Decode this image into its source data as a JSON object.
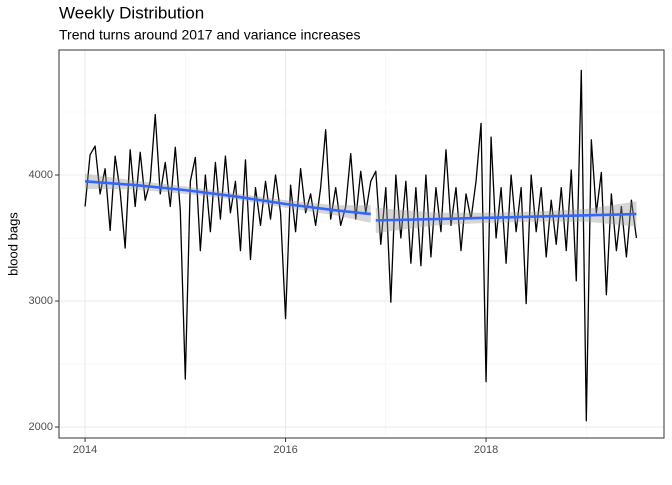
{
  "chart_data": {
    "type": "line",
    "title": "Weekly Distribution",
    "subtitle": "Trend turns around 2017 and variance increases",
    "y_label": "blood bags",
    "xlim": [
      2013.74,
      2019.775
    ],
    "ylim": [
      1913,
      4992
    ],
    "xticks": [
      2014,
      2016,
      2018
    ],
    "yticks": [
      2000,
      3000,
      4000
    ],
    "x_minor_grid": [
      2015,
      2017,
      2019
    ],
    "y_minor_grid": [
      2500,
      3500,
      4500
    ],
    "grid": true,
    "series": [
      {
        "color": "#000000",
        "x": [
          2014.0,
          2014.05,
          2014.1,
          2014.15,
          2014.2,
          2014.25,
          2014.3,
          2014.35,
          2014.4,
          2014.45,
          2014.5,
          2014.55,
          2014.6,
          2014.65,
          2014.7,
          2014.75,
          2014.8,
          2014.85,
          2014.9,
          2014.95,
          2015.0,
          2015.05,
          2015.1,
          2015.15,
          2015.2,
          2015.25,
          2015.3,
          2015.35,
          2015.4,
          2015.45,
          2015.5,
          2015.55,
          2015.6,
          2015.65,
          2015.7,
          2015.75,
          2015.8,
          2015.85,
          2015.9,
          2015.95,
          2016.0,
          2016.05,
          2016.1,
          2016.15,
          2016.2,
          2016.25,
          2016.3,
          2016.35,
          2016.4,
          2016.45,
          2016.5,
          2016.55,
          2016.6,
          2016.65,
          2016.7,
          2016.75,
          2016.8,
          2016.85,
          2016.9,
          2016.95,
          2017.0,
          2017.05,
          2017.1,
          2017.15,
          2017.2,
          2017.25,
          2017.3,
          2017.35,
          2017.4,
          2017.45,
          2017.5,
          2017.55,
          2017.6,
          2017.65,
          2017.7,
          2017.75,
          2017.8,
          2017.85,
          2017.9,
          2017.95,
          2018.0,
          2018.05,
          2018.1,
          2018.15,
          2018.2,
          2018.25,
          2018.3,
          2018.35,
          2018.4,
          2018.45,
          2018.5,
          2018.55,
          2018.6,
          2018.65,
          2018.7,
          2018.75,
          2018.8,
          2018.85,
          2018.9,
          2018.95,
          2019.0,
          2019.05,
          2019.1,
          2019.15,
          2019.2,
          2019.25,
          2019.3,
          2019.35,
          2019.4,
          2019.45,
          2019.5
        ],
        "values": [
          3750,
          4160,
          4230,
          3850,
          4050,
          3560,
          4150,
          3870,
          3420,
          4200,
          3750,
          4180,
          3800,
          3950,
          4480,
          3850,
          4100,
          3750,
          4220,
          3720,
          2380,
          3950,
          4140,
          3400,
          4000,
          3550,
          4100,
          3650,
          4150,
          3700,
          3950,
          3400,
          4120,
          3330,
          3900,
          3600,
          3950,
          3650,
          4000,
          3700,
          2860,
          3920,
          3550,
          4050,
          3700,
          3850,
          3600,
          3900,
          4360,
          3650,
          3900,
          3600,
          3750,
          4170,
          3650,
          4030,
          3700,
          3950,
          4030,
          3450,
          3900,
          2990,
          4000,
          3500,
          3950,
          3300,
          3900,
          3280,
          4000,
          3350,
          3900,
          3550,
          4200,
          3600,
          3900,
          3400,
          3850,
          3650,
          3950,
          4410,
          2360,
          4300,
          3500,
          3900,
          3300,
          4000,
          3550,
          3900,
          2980,
          4000,
          3550,
          3900,
          3350,
          3800,
          3450,
          3900,
          3400,
          4040,
          3160,
          4830,
          2050,
          4280,
          3700,
          4020,
          3050,
          3850,
          3400,
          3750,
          3350,
          3800,
          3500
        ]
      }
    ],
    "smooth_color": "#3366FF",
    "band_color": "#999999",
    "smooth": [
      {
        "x": [
          2014,
          2014.5,
          2015,
          2015.5,
          2016,
          2016.5,
          2016.85
        ],
        "values": [
          3950,
          3920,
          3880,
          3830,
          3770,
          3720,
          3690
        ],
        "lower": [
          3890,
          3885,
          3850,
          3805,
          3740,
          3680,
          3620
        ],
        "upper": [
          4010,
          3955,
          3910,
          3855,
          3800,
          3760,
          3760
        ]
      },
      {
        "x": [
          2016.9,
          2017.5,
          2018,
          2018.5,
          2019,
          2019.5
        ],
        "values": [
          3640,
          3650,
          3660,
          3670,
          3680,
          3690
        ],
        "lower": [
          3540,
          3600,
          3620,
          3630,
          3630,
          3590
        ],
        "upper": [
          3740,
          3700,
          3700,
          3710,
          3730,
          3790
        ]
      }
    ]
  }
}
